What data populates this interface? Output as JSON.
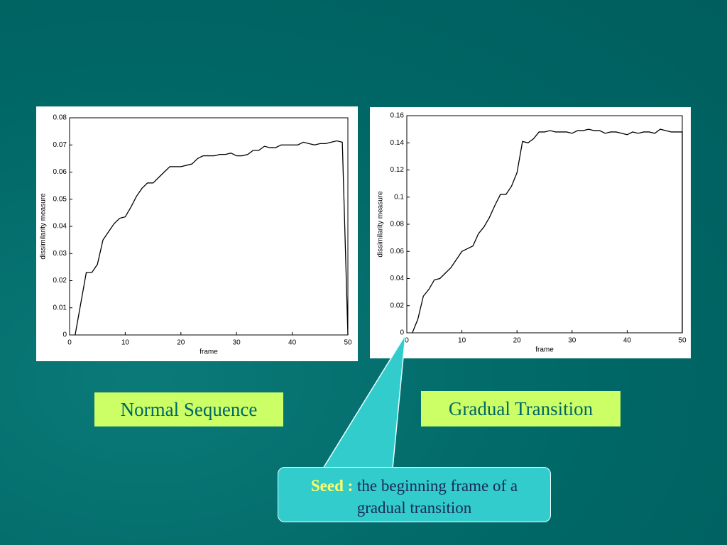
{
  "chart_data": [
    {
      "type": "line",
      "x_label": "frame",
      "y_label": "dissimilarity measure",
      "color": "#000000",
      "x": [
        1,
        3,
        4,
        5,
        6,
        7,
        8,
        9,
        10,
        11,
        12,
        13,
        14,
        15,
        16,
        17,
        18,
        19,
        20,
        21,
        22,
        23,
        24,
        25,
        26,
        27,
        28,
        29,
        30,
        31,
        32,
        33,
        34,
        35,
        36,
        37,
        38,
        39,
        40,
        41,
        42,
        43,
        44,
        45,
        46,
        47,
        48,
        49,
        50
      ],
      "values": [
        0,
        0.023,
        0.023,
        0.026,
        0.035,
        0.038,
        0.041,
        0.043,
        0.0435,
        0.047,
        0.051,
        0.054,
        0.056,
        0.056,
        0.058,
        0.06,
        0.062,
        0.062,
        0.062,
        0.0625,
        0.063,
        0.065,
        0.066,
        0.066,
        0.066,
        0.0665,
        0.0665,
        0.067,
        0.066,
        0.066,
        0.0665,
        0.068,
        0.068,
        0.0695,
        0.069,
        0.069,
        0.07,
        0.07,
        0.07,
        0.07,
        0.071,
        0.0705,
        0.07,
        0.0705,
        0.0705,
        0.071,
        0.0715,
        0.071,
        0
      ],
      "xlim": [
        0,
        50
      ],
      "xticks": [
        0,
        10,
        20,
        30,
        40,
        50
      ],
      "ylim": [
        0,
        0.08
      ],
      "yticks": [
        0,
        0.01,
        0.02,
        0.03,
        0.04,
        0.05,
        0.06,
        0.07,
        0.08
      ]
    },
    {
      "type": "line",
      "x_label": "frame",
      "y_label": "dissimilarity measure",
      "color": "#000000",
      "x": [
        1,
        2,
        3,
        4,
        5,
        6,
        7,
        8,
        9,
        10,
        11,
        12,
        13,
        14,
        15,
        16,
        17,
        18,
        19,
        20,
        21,
        22,
        23,
        24,
        25,
        26,
        27,
        28,
        29,
        30,
        31,
        32,
        33,
        34,
        35,
        36,
        37,
        38,
        39,
        40,
        41,
        42,
        43,
        44,
        45,
        46,
        47,
        48,
        49,
        50,
        50
      ],
      "values": [
        0,
        0.01,
        0.027,
        0.032,
        0.039,
        0.04,
        0.044,
        0.048,
        0.054,
        0.06,
        0.062,
        0.064,
        0.073,
        0.078,
        0.085,
        0.094,
        0.102,
        0.102,
        0.108,
        0.118,
        0.141,
        0.14,
        0.143,
        0.148,
        0.148,
        0.149,
        0.148,
        0.148,
        0.148,
        0.147,
        0.149,
        0.149,
        0.15,
        0.149,
        0.149,
        0.147,
        0.148,
        0.148,
        0.147,
        0.146,
        0.148,
        0.147,
        0.148,
        0.148,
        0.147,
        0.15,
        0.149,
        0.148,
        0.148,
        0.148,
        0
      ],
      "xlim": [
        0,
        50
      ],
      "xticks": [
        0,
        10,
        20,
        30,
        40,
        50
      ],
      "ylim": [
        0,
        0.16
      ],
      "yticks": [
        0,
        0.02,
        0.04,
        0.06,
        0.08,
        0.1,
        0.12,
        0.14,
        0.16
      ]
    }
  ],
  "labels": [
    "Normal Sequence",
    "Gradual Transition"
  ],
  "callout": {
    "keyword": "Seed :",
    "text": "the beginning frame of a gradual transition"
  }
}
